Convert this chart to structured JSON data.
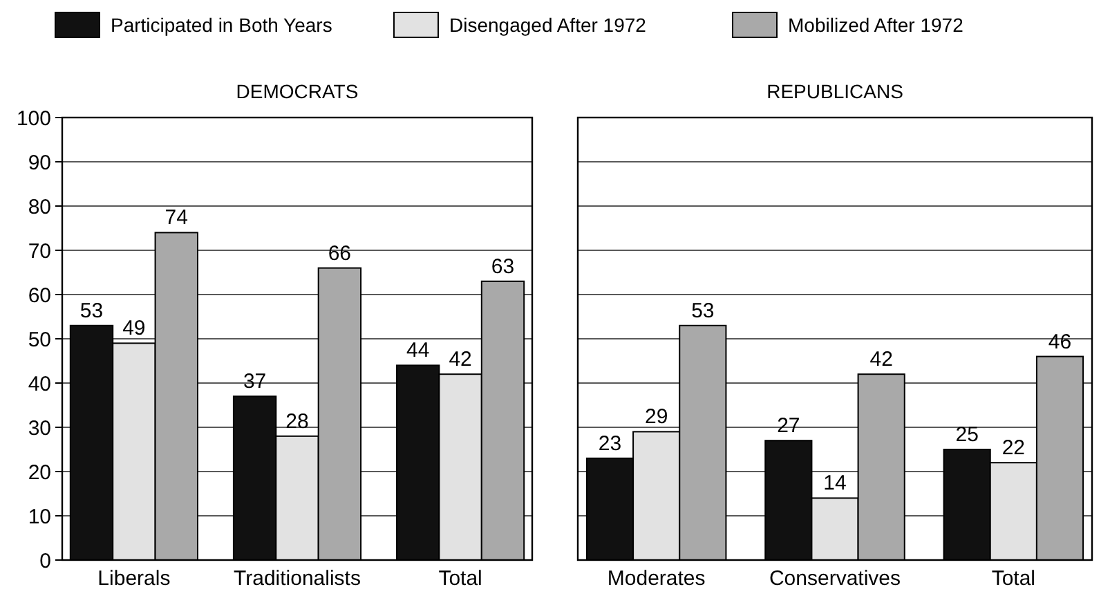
{
  "chart_data": [
    {
      "type": "bar",
      "title": "DEMOCRATS",
      "categories": [
        "Liberals",
        "Traditionalists",
        "Total"
      ],
      "series": [
        {
          "name": "Participated in Both Years",
          "color": "#111111",
          "values": [
            53,
            37,
            44
          ]
        },
        {
          "name": "Disengaged After 1972",
          "color": "#e2e2e2",
          "values": [
            49,
            28,
            42
          ]
        },
        {
          "name": "Mobilized After 1972",
          "color": "#a9a9a9",
          "values": [
            74,
            66,
            63
          ]
        }
      ],
      "ylim": [
        0,
        100
      ],
      "yticks": [
        0,
        10,
        20,
        30,
        40,
        50,
        60,
        70,
        80,
        90,
        100
      ],
      "grid": "y",
      "legend": "top",
      "data_labels": true
    },
    {
      "type": "bar",
      "title": "REPUBLICANS",
      "categories": [
        "Moderates",
        "Conservatives",
        "Total"
      ],
      "series": [
        {
          "color": "#111111",
          "values": [
            23,
            27,
            25
          ]
        },
        {
          "color": "#e2e2e2",
          "values": [
            29,
            14,
            22
          ]
        },
        {
          "color": "#a9a9a9",
          "values": [
            53,
            42,
            46
          ]
        }
      ],
      "ylim": [
        0,
        100
      ],
      "yticks": [
        0,
        10,
        20,
        30,
        40,
        50,
        60,
        70,
        80,
        90,
        100
      ],
      "grid": "y",
      "data_labels": true,
      "tick_labels": "x"
    }
  ]
}
